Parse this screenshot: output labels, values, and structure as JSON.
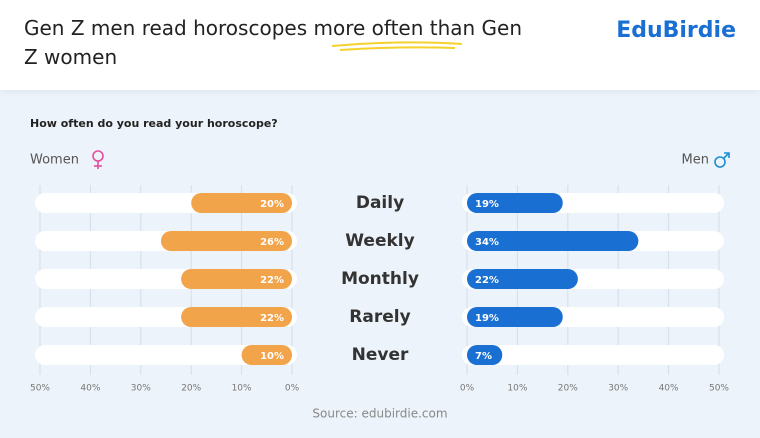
{
  "chart_data": {
    "type": "butterfly",
    "title": "Gen Z men read horoscopes more often than Gen Z women",
    "logo": "EduBirdie",
    "subtitle": "How often do you read your horoscope?",
    "source": "Source: edubirdie.com",
    "categories": [
      "Daily",
      "Weekly",
      "Monthly",
      "Rarely",
      "Never"
    ],
    "series": [
      {
        "name": "Women",
        "color": "#f2a44b",
        "values": [
          20,
          26,
          22,
          22,
          10
        ],
        "value_labels": [
          "20%",
          "26%",
          "22%",
          "22%",
          "10%"
        ]
      },
      {
        "name": "Men",
        "color": "#1a6fd2",
        "values": [
          19,
          34,
          22,
          19,
          7
        ],
        "value_labels": [
          "19%",
          "34%",
          "22%",
          "19%",
          "7%"
        ]
      }
    ],
    "xlim": [
      0,
      50
    ],
    "xticks": [
      {
        "value": 0,
        "label": "0%"
      },
      {
        "value": 10,
        "label": "10%"
      },
      {
        "value": 20,
        "label": "20%"
      },
      {
        "value": 30,
        "label": "30%"
      },
      {
        "value": 40,
        "label": "40%"
      },
      {
        "value": 50,
        "label": "50%"
      }
    ],
    "grid": true
  }
}
